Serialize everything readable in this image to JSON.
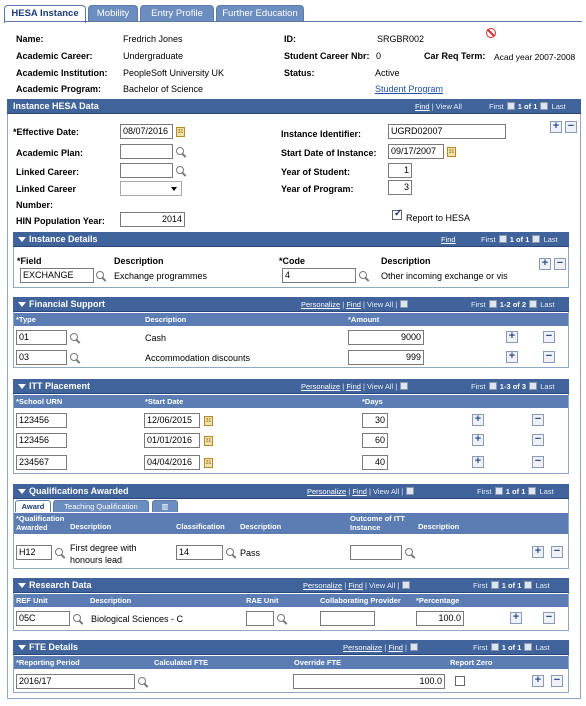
{
  "tabs": [
    "HESA Instance",
    "Mobility",
    "Entry Profile",
    "Further Education"
  ],
  "header": {
    "name_label": "Name:",
    "name": "Fredrich Jones",
    "id_label": "ID:",
    "id": "SRGBR002",
    "career_label": "Academic Career:",
    "career": "Undergraduate",
    "career_nbr_label": "Student Career Nbr:",
    "career_nbr": "0",
    "car_req_label": "Car Req Term:",
    "car_req": "Acad year 2007-2008",
    "institution_label": "Academic Institution:",
    "institution": "PeopleSoft University UK",
    "status_label": "Status:",
    "status": "Active",
    "program_label": "Academic Program:",
    "program": "Bachelor of Science",
    "student_program_link": "Student Program"
  },
  "nav": {
    "find": "Find",
    "view_all": "View All",
    "first": "First",
    "last": "Last",
    "personalize": "Personalize",
    "sep": "|"
  },
  "instance": {
    "title": "Instance HESA Data",
    "counter": "1 of 1",
    "effective_date_label": "*Effective Date:",
    "effective_date": "08/07/2016",
    "academic_plan_label": "Academic Plan:",
    "academic_plan": "",
    "linked_career_label": "Linked Career:",
    "linked_career": "",
    "linked_career_number_label1": "Linked Career",
    "linked_career_number_label2": "Number:",
    "hin_label": "HIN Population Year:",
    "hin": "2014",
    "instance_id_label": "Instance Identifier:",
    "instance_id": "UGRD02007",
    "start_date_label": "Start Date of Instance:",
    "start_date": "09/17/2007",
    "year_student_label": "Year of Student:",
    "year_student": "1",
    "year_program_label": "Year of Program:",
    "year_program": "3",
    "report_label": "Report to HESA"
  },
  "instance_details": {
    "title": "Instance Details",
    "counter": "1 of 1",
    "field_label": "*Field",
    "desc_label": "Description",
    "code_label": "*Code",
    "desc2_label": "Description",
    "field": "EXCHANGE",
    "field_desc": "Exchange programmes",
    "code": "4",
    "code_desc": "Other incoming exchange or vis"
  },
  "financial": {
    "title": "Financial Support",
    "counter": "1-2 of 2",
    "cols": [
      "*Type",
      "Description",
      "*Amount"
    ],
    "rows": [
      {
        "type": "01",
        "desc": "Cash",
        "amount": "9000"
      },
      {
        "type": "03",
        "desc": "Accommodation discounts",
        "amount": "999"
      }
    ]
  },
  "itt": {
    "title": "ITT Placement",
    "counter": "1-3 of 3",
    "cols": [
      "*School URN",
      "*Start Date",
      "*Days"
    ],
    "rows": [
      {
        "urn": "123456",
        "date": "12/06/2015",
        "days": "30"
      },
      {
        "urn": "123456",
        "date": "01/01/2016",
        "days": "60"
      },
      {
        "urn": "234567",
        "date": "04/04/2016",
        "days": "40"
      }
    ]
  },
  "qual": {
    "title": "Qualifications Awarded",
    "counter": "1 of 1",
    "subtabs": [
      "Award",
      "Teaching Qualification"
    ],
    "cols": [
      "*Qualification Awarded",
      "Description",
      "Classification",
      "Description",
      "Outcome of ITT Instance",
      "Description"
    ],
    "row": {
      "qual": "H12",
      "desc1": "First degree with",
      "desc2": "honours lead",
      "class": "14",
      "class_desc": "Pass",
      "outcome": "",
      "outcome_desc": ""
    }
  },
  "research": {
    "title": "Research Data",
    "counter": "1 of 1",
    "cols": [
      "REF Unit",
      "Description",
      "RAE Unit",
      "Collaborating Provider",
      "*Percentage"
    ],
    "row": {
      "ref": "05C",
      "desc": "Biological Sciences - C",
      "rae": "",
      "collab": "",
      "pct": "100.0"
    }
  },
  "fte": {
    "title": "FTE Details",
    "counter": "1 of 1",
    "cols": [
      "*Reporting Period",
      "Calculated FTE",
      "Override FTE",
      "Report Zero"
    ],
    "row": {
      "period": "2016/17",
      "calc": "",
      "override": "100.0"
    }
  },
  "icons": {
    "plus": "+",
    "minus": "−",
    "cal": "31"
  }
}
